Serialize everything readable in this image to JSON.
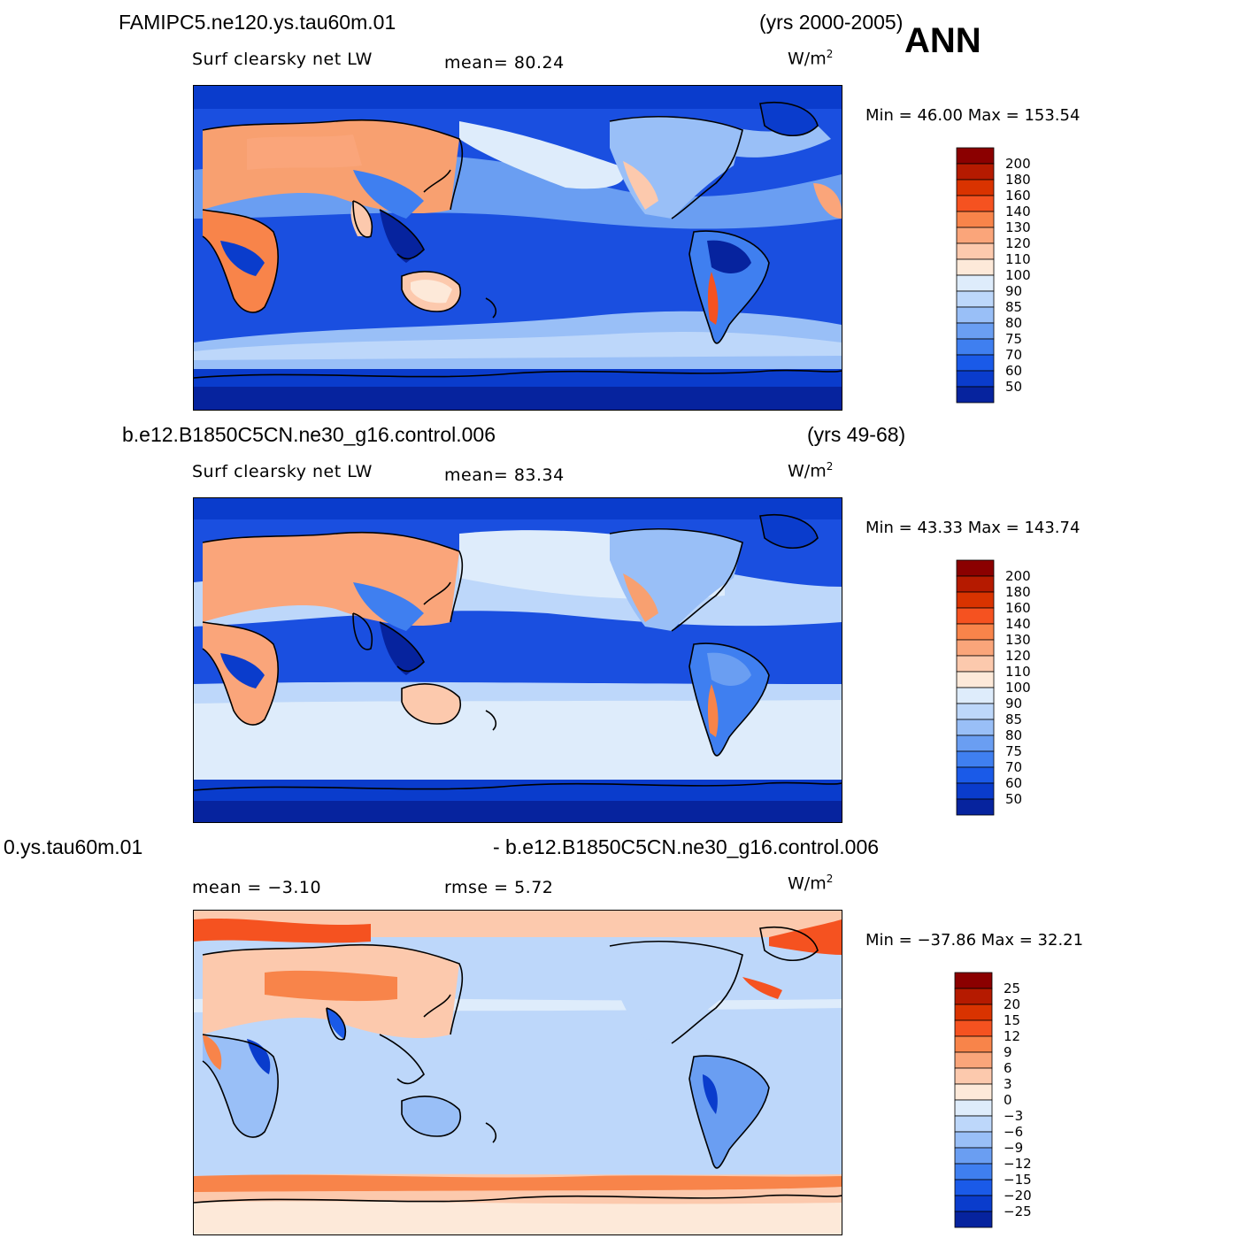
{
  "season": "ANN",
  "units_base": "W/m",
  "units_exp": "2",
  "panels": [
    {
      "case": "FAMIPC5.ne120.ys.tau60m.01",
      "years": "(yrs 2000-2005)",
      "variable": "Surf  clearsky  net  LW",
      "stat1": "mean=   80.24",
      "stat2": "",
      "minmax": "Min  =   46.00  Max  =  153.54",
      "colorbar_id": "abs"
    },
    {
      "case": "b.e12.B1850C5CN.ne30_g16.control.006",
      "years": "(yrs 49-68)",
      "variable": "Surf  clearsky  net  LW",
      "stat1": "mean=   83.34",
      "stat2": "",
      "minmax": "Min  =   43.33  Max  =  143.74",
      "colorbar_id": "abs"
    },
    {
      "case": "0.ys.tau60m.01",
      "years": "- b.e12.B1850C5CN.ne30_g16.control.006",
      "variable": "",
      "stat1": "mean  =   −3.10",
      "stat2": "rmse  =     5.72",
      "minmax": "Min  = −37.86  Max  =   32.21",
      "colorbar_id": "diff"
    }
  ],
  "colorbars": {
    "abs": {
      "labels": [
        "200",
        "180",
        "160",
        "140",
        "130",
        "120",
        "110",
        "100",
        "90",
        "85",
        "80",
        "75",
        "70",
        "60",
        "50"
      ],
      "colors": [
        "#8b0000",
        "#b51a00",
        "#d93300",
        "#f55220",
        "#f8844a",
        "#faa57a",
        "#fcc9ad",
        "#fde9d9",
        "#deecfb",
        "#bdd7fa",
        "#99bff7",
        "#6a9ef2",
        "#3f7ff0",
        "#1a5ae8",
        "#0a3ccc",
        "#06239e"
      ]
    },
    "diff": {
      "labels": [
        "25",
        "20",
        "15",
        "12",
        "9",
        "6",
        "3",
        "0",
        "−3",
        "−6",
        "−9",
        "−12",
        "−15",
        "−20",
        "−25"
      ],
      "colors": [
        "#8b0000",
        "#b51a00",
        "#d93300",
        "#f55220",
        "#f8844a",
        "#faa57a",
        "#fcc9ad",
        "#fde9d9",
        "#deecfb",
        "#bdd7fa",
        "#99bff7",
        "#6a9ef2",
        "#3f7ff0",
        "#1a5ae8",
        "#0a3ccc",
        "#06239e"
      ]
    }
  }
}
